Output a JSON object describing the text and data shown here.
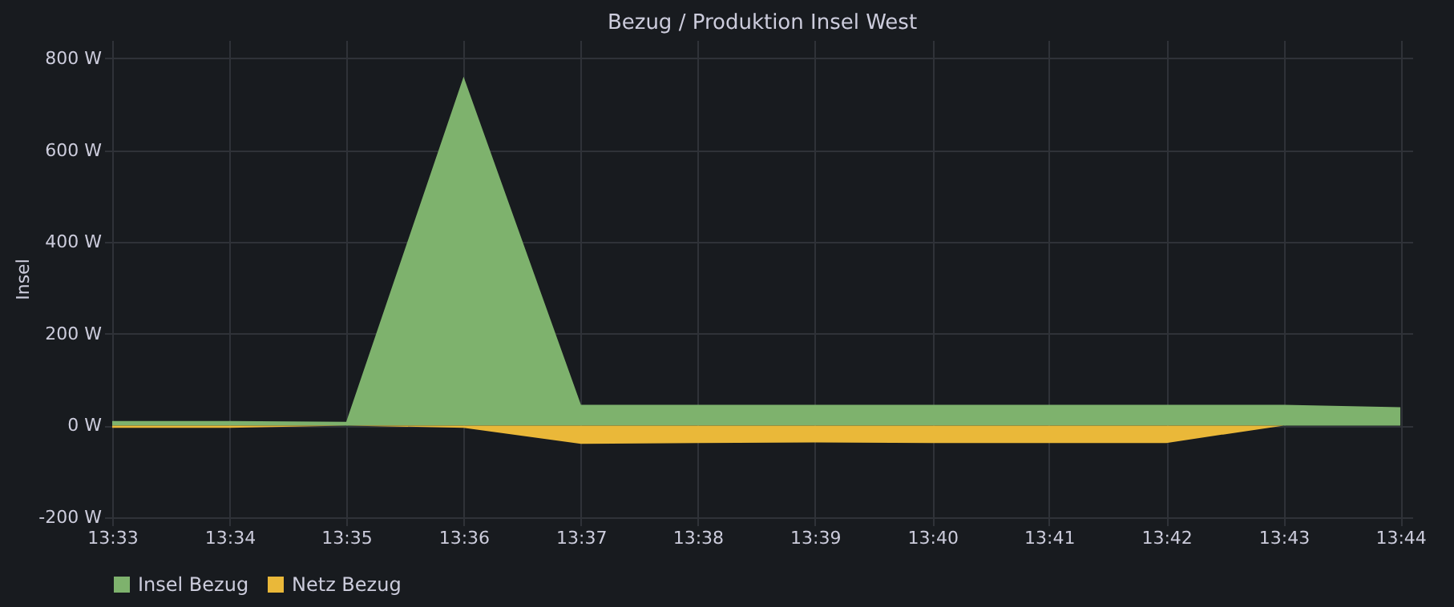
{
  "chart_data": {
    "type": "area",
    "title": "Bezug / Produktion Insel West",
    "ylabel": "Insel",
    "x": [
      13.55,
      13.5667,
      13.5833,
      13.6,
      13.6167,
      13.6333,
      13.65,
      13.6667,
      13.6833,
      13.7,
      13.7167,
      13.7333
    ],
    "series": [
      {
        "name": "Insel Bezug",
        "color": "#7eb26d",
        "values": [
          10,
          10,
          8,
          760,
          45,
          45,
          45,
          45,
          45,
          45,
          45,
          40
        ]
      },
      {
        "name": "Netz Bezug",
        "color": "#eab839",
        "values": [
          -5,
          -5,
          0,
          -5,
          -40,
          -38,
          -37,
          -38,
          -38,
          -38,
          0,
          0
        ]
      }
    ],
    "xlim": [
      13.55,
      13.735
    ],
    "xticks": [
      {
        "value": 13.55,
        "label": "13:33"
      },
      {
        "value": 13.5667,
        "label": "13:34"
      },
      {
        "value": 13.5833,
        "label": "13:35"
      },
      {
        "value": 13.6,
        "label": "13:36"
      },
      {
        "value": 13.6167,
        "label": "13:37"
      },
      {
        "value": 13.6333,
        "label": "13:38"
      },
      {
        "value": 13.65,
        "label": "13:39"
      },
      {
        "value": 13.6667,
        "label": "13:40"
      },
      {
        "value": 13.6833,
        "label": "13:41"
      },
      {
        "value": 13.7,
        "label": "13:42"
      },
      {
        "value": 13.7167,
        "label": "13:43"
      },
      {
        "value": 13.7333,
        "label": "13:44"
      }
    ],
    "ylim": [
      -200,
      840
    ],
    "yticks": [
      {
        "value": -200,
        "label": "-200 W"
      },
      {
        "value": 0,
        "label": "0 W"
      },
      {
        "value": 200,
        "label": "200 W"
      },
      {
        "value": 400,
        "label": "400 W"
      },
      {
        "value": 600,
        "label": "600 W"
      },
      {
        "value": 800,
        "label": "800 W"
      }
    ],
    "grid": true,
    "legend": "bottom"
  }
}
